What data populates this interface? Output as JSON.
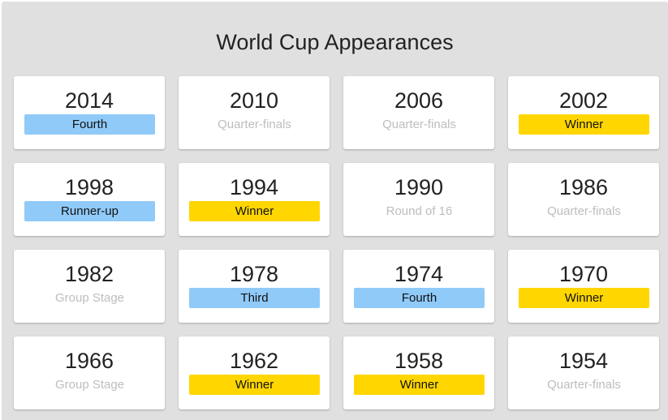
{
  "title": "World Cup Appearances",
  "colors": {
    "panel_bg": "#e0e0e0",
    "card_bg": "#ffffff",
    "winner": "#ffd600",
    "podium": "#90caf9",
    "plain_text": "#bdbdbd"
  },
  "appearances": [
    {
      "year": "2014",
      "result": "Fourth",
      "style": "blue"
    },
    {
      "year": "2010",
      "result": "Quarter-finals",
      "style": "plain"
    },
    {
      "year": "2006",
      "result": "Quarter-finals",
      "style": "plain"
    },
    {
      "year": "2002",
      "result": "Winner",
      "style": "yellow"
    },
    {
      "year": "1998",
      "result": "Runner-up",
      "style": "blue"
    },
    {
      "year": "1994",
      "result": "Winner",
      "style": "yellow"
    },
    {
      "year": "1990",
      "result": "Round of 16",
      "style": "plain"
    },
    {
      "year": "1986",
      "result": "Quarter-finals",
      "style": "plain"
    },
    {
      "year": "1982",
      "result": "Group Stage",
      "style": "plain"
    },
    {
      "year": "1978",
      "result": "Third",
      "style": "blue"
    },
    {
      "year": "1974",
      "result": "Fourth",
      "style": "blue"
    },
    {
      "year": "1970",
      "result": "Winner",
      "style": "yellow"
    },
    {
      "year": "1966",
      "result": "Group Stage",
      "style": "plain"
    },
    {
      "year": "1962",
      "result": "Winner",
      "style": "yellow"
    },
    {
      "year": "1958",
      "result": "Winner",
      "style": "yellow"
    },
    {
      "year": "1954",
      "result": "Quarter-finals",
      "style": "plain"
    }
  ]
}
